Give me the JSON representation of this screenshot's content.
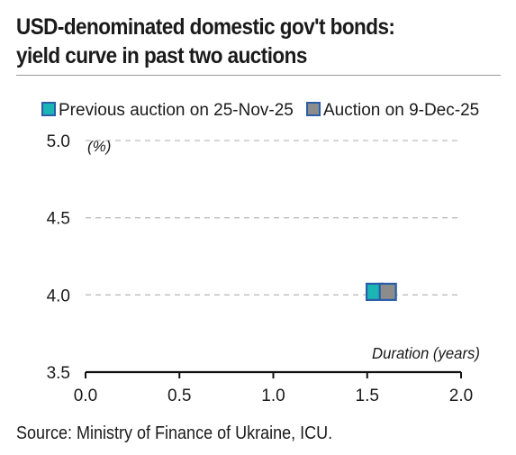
{
  "title_lines": [
    "USD-denominated domestic gov't bonds:",
    "yield curve in past two auctions"
  ],
  "source": "Source: Ministry of Finance of Ukraine, ICU.",
  "chart_data": {
    "type": "scatter",
    "ylabel": "(%)",
    "xlabel": "Duration (years)",
    "xlim": [
      0.0,
      2.0
    ],
    "ylim": [
      3.5,
      5.0
    ],
    "x_ticks": [
      "0.0",
      "0.5",
      "1.0",
      "1.5",
      "2.0"
    ],
    "y_ticks": [
      "3.5",
      "4.0",
      "4.5",
      "5.0"
    ],
    "x_tick_values": [
      0.0,
      0.5,
      1.0,
      1.5,
      2.0
    ],
    "y_tick_values": [
      3.5,
      4.0,
      4.5,
      5.0
    ],
    "grid": "horizontal dashed",
    "legend_position": "top",
    "series": [
      {
        "name": "Previous auction on 25-Nov-25",
        "color": "#1bb5b5",
        "border": "#2a5ea8",
        "points": [
          {
            "x": 1.54,
            "y": 4.02
          }
        ]
      },
      {
        "name": "Auction on 9-Dec-25",
        "color": "#8c8c8c",
        "border": "#2a5ea8",
        "points": [
          {
            "x": 1.61,
            "y": 4.02
          }
        ]
      }
    ]
  }
}
